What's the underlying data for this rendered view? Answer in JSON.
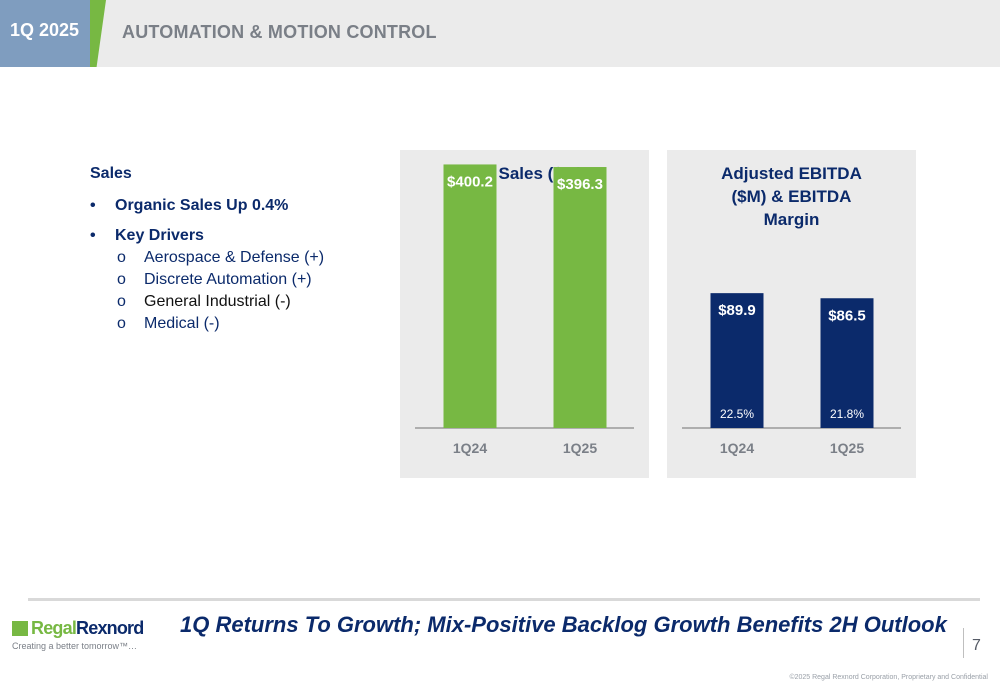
{
  "header": {
    "quarter": "1Q 2025",
    "title": "AUTOMATION & MOTION CONTROL"
  },
  "drivers": {
    "heading": "Sales",
    "bullets": [
      "Organic Sales Up 0.4%",
      "Key Drivers"
    ],
    "sub_items": [
      "Aerospace & Defense (+)",
      "Discrete Automation (+)",
      "General Industrial (-)",
      "Medical (-)"
    ],
    "bullet_glyph": "•",
    "sub_glyph": "o"
  },
  "colors": {
    "green": "#77b843",
    "navy": "#0b2a6b",
    "panel_bg": "#ebebeb",
    "header_blue": "#7f9dbf"
  },
  "chart_data": [
    {
      "type": "bar",
      "title": "Net Sales ($M)",
      "categories": [
        "1Q24",
        "1Q25"
      ],
      "values": [
        400.2,
        396.3
      ],
      "data_labels": [
        "$400.2",
        "$396.3"
      ],
      "color": "#77b843",
      "ylim": [
        0,
        410
      ]
    },
    {
      "type": "bar",
      "title": "Adjusted EBITDA ($M) & EBITDA Margin",
      "title_lines": [
        "Adjusted EBITDA",
        "($M) & EBITDA",
        "Margin"
      ],
      "categories": [
        "1Q24",
        "1Q25"
      ],
      "values": [
        89.9,
        86.5
      ],
      "data_labels": [
        "$89.9",
        "$86.5"
      ],
      "margins": [
        "22.5%",
        "21.8%"
      ],
      "color": "#0b2a6b",
      "ylim": [
        0,
        180
      ]
    }
  ],
  "footer": {
    "logo_a": "Regal",
    "logo_b": "Rexnord",
    "tagline": "Creating a better tomorrow™…",
    "headline": "1Q Returns To Growth; Mix-Positive Backlog Growth Benefits 2H Outlook",
    "page": "7",
    "copyright": "©2025 Regal Rexnord Corporation, Proprietary and Confidential"
  }
}
